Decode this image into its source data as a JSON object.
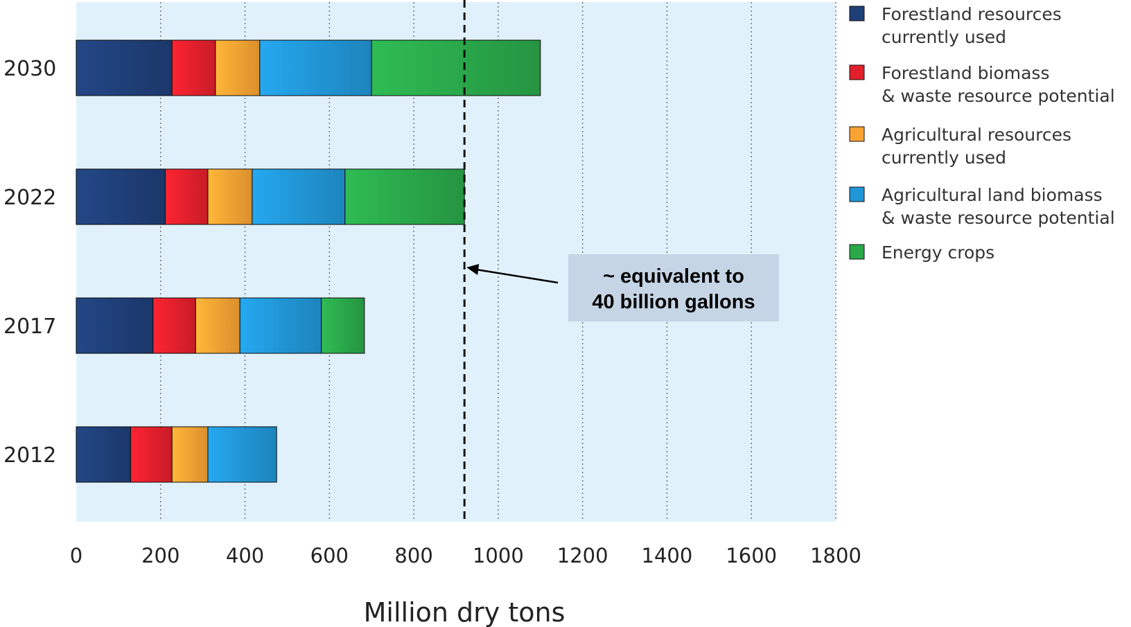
{
  "chart_data": {
    "type": "bar",
    "orientation": "horizontal",
    "stacked": true,
    "categories": [
      "2030",
      "2022",
      "2017",
      "2012"
    ],
    "xlabel": "Million dry tons",
    "ylabel": "",
    "xlim": [
      0,
      1800
    ],
    "xticks": [
      0,
      200,
      400,
      600,
      800,
      1000,
      1200,
      1400,
      1600,
      1800
    ],
    "grid": "vertical-dotted",
    "legend_position": "right",
    "series": [
      {
        "name": "Forestland resources currently used",
        "legend_lines": [
          "Forestland resources",
          "currently used"
        ],
        "color": "#1f3f78",
        "values": [
          227,
          211,
          182,
          129
        ]
      },
      {
        "name": "Forestland biomass & waste resource potential",
        "legend_lines": [
          "Forestland biomass",
          "& waste resource potential"
        ],
        "color": "#e2202c",
        "values": [
          103,
          101,
          101,
          98
        ]
      },
      {
        "name": "Agricultural resources currently used",
        "legend_lines": [
          "Agricultural resources",
          "currently used"
        ],
        "color": "#f9a333",
        "values": [
          105,
          105,
          105,
          85
        ]
      },
      {
        "name": "Agricultural land biomass & waste resource potential",
        "legend_lines": [
          "Agricultural land biomass",
          "& waste resource potential"
        ],
        "color": "#2196d6",
        "values": [
          265,
          220,
          193,
          163
        ]
      },
      {
        "name": "Energy crops",
        "legend_lines": [
          "Energy crops"
        ],
        "color": "#2aa84a",
        "values": [
          400,
          283,
          102,
          0
        ]
      }
    ],
    "reference_line": {
      "x": 920,
      "style": "dashed"
    },
    "annotation": {
      "lines": [
        "~ equivalent to",
        "40 billion gallons"
      ],
      "points_to_x": 920
    }
  }
}
